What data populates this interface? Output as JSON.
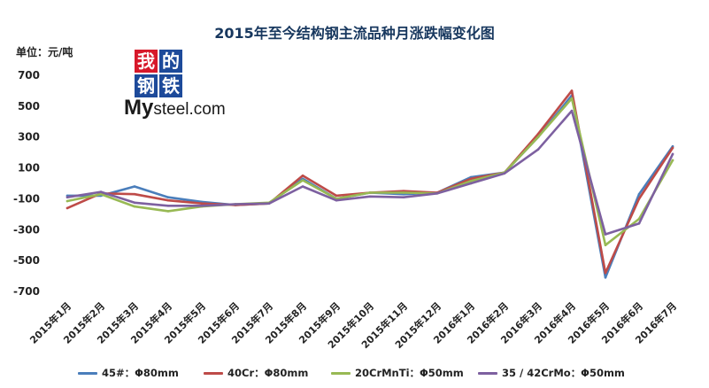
{
  "chart_data": {
    "type": "line",
    "title": "2015年至今结构钢主流品种月涨跌幅变化图",
    "title_color": "#17375e",
    "ylabel": "单位：元/吨",
    "xlabel": "",
    "categories": [
      "2015年1月",
      "2015年2月",
      "2015年3月",
      "2015年4月",
      "2015年5月",
      "2015年6月",
      "2015年7月",
      "2015年8月",
      "2015年9月",
      "2015年10月",
      "2015年11月",
      "2015年12月",
      "2016年1月",
      "2016年2月",
      "2016年3月",
      "2016年4月",
      "2016年5月",
      "2016年6月",
      "2016年7月"
    ],
    "yticks": [
      700,
      500,
      300,
      100,
      -100,
      -300,
      -500,
      -700
    ],
    "ylim": [
      -700,
      700
    ],
    "grid": false,
    "legend_position": "bottom",
    "series": [
      {
        "name": "45#：Φ80mm",
        "color": "#4a7ebb",
        "values": [
          -80,
          -80,
          -20,
          -90,
          -120,
          -140,
          -130,
          30,
          -100,
          -60,
          -70,
          -60,
          40,
          70,
          300,
          570,
          -610,
          -70,
          240
        ]
      },
      {
        "name": "40Cr：Φ80mm",
        "color": "#be4b48",
        "values": [
          -160,
          -65,
          -70,
          -110,
          -130,
          -140,
          -130,
          50,
          -80,
          -60,
          -50,
          -60,
          30,
          70,
          320,
          600,
          -580,
          -100,
          230
        ]
      },
      {
        "name": "20CrMnTi：Φ50mm",
        "color": "#98b954",
        "values": [
          -115,
          -70,
          -150,
          -180,
          -150,
          -135,
          -125,
          20,
          -100,
          -60,
          -60,
          -65,
          15,
          70,
          300,
          550,
          -400,
          -230,
          150
        ]
      },
      {
        "name": "35 / 42CrMo：Φ50mm",
        "color": "#7d60a0",
        "values": [
          -90,
          -55,
          -125,
          -145,
          -145,
          -135,
          -130,
          -20,
          -110,
          -85,
          -90,
          -65,
          0,
          65,
          220,
          470,
          -330,
          -260,
          190
        ]
      }
    ]
  },
  "logo": {
    "chars": [
      "我",
      "的",
      "钢",
      "铁"
    ],
    "colors": [
      "#d7182a",
      "#1d4a9a",
      "#1d4a9a",
      "#1d4a9a"
    ],
    "en_prefix": "My",
    "en_suffix": "steel.com"
  }
}
